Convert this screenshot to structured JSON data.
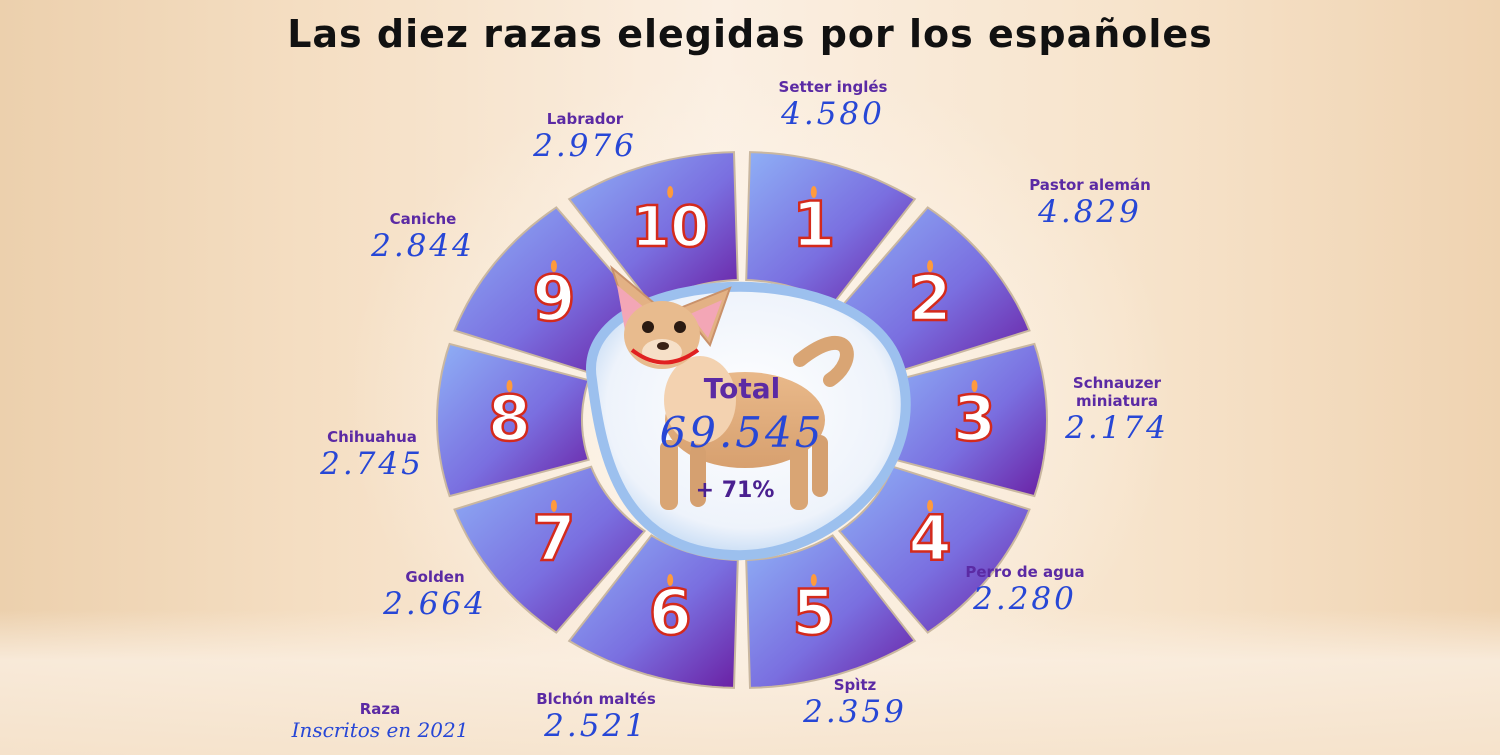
{
  "title": "Las diez razas elegidas por los españoles",
  "chart_data": {
    "type": "pie",
    "title": "Las diez razas elegidas por los españoles",
    "categories": [
      "Pastor alemán",
      "Setter inglés",
      "Labrador",
      "Caniche",
      "Chihuahua",
      "Golden",
      "Blchón maltés",
      "Spìtz",
      "Perro de agua",
      "Schnauzer miniatura"
    ],
    "ranks": [
      "1",
      "2",
      "3",
      "4",
      "5",
      "6",
      "7",
      "8",
      "9",
      "10"
    ],
    "values_text": [
      "4.829",
      "4.580",
      "2.976",
      "2.844",
      "2.745",
      "2.664",
      "2.521",
      "2.359",
      "2.280",
      "2.174"
    ],
    "values": [
      4829,
      4580,
      2976,
      2844,
      2745,
      2664,
      2521,
      2359,
      2280,
      2174
    ],
    "total_label": "Total",
    "total_value": "69.545",
    "growth": "+ 71%",
    "legend": {
      "label": "Raza",
      "sublabel": "Inscritos en 2021"
    }
  },
  "colors": {
    "segment_light": "#86a3f2",
    "segment_dark": "#6a1fa3",
    "center_fill": "#f2f5fc",
    "center_ring": "#9cc0ee",
    "separator": "#c9b7a0",
    "name": "#5b2aa4",
    "value": "#2747d6",
    "digit_fill": "#ffffff",
    "digit_stroke": "#d42a1c"
  },
  "icons": {
    "center": "chihuahua-dog-icon"
  }
}
